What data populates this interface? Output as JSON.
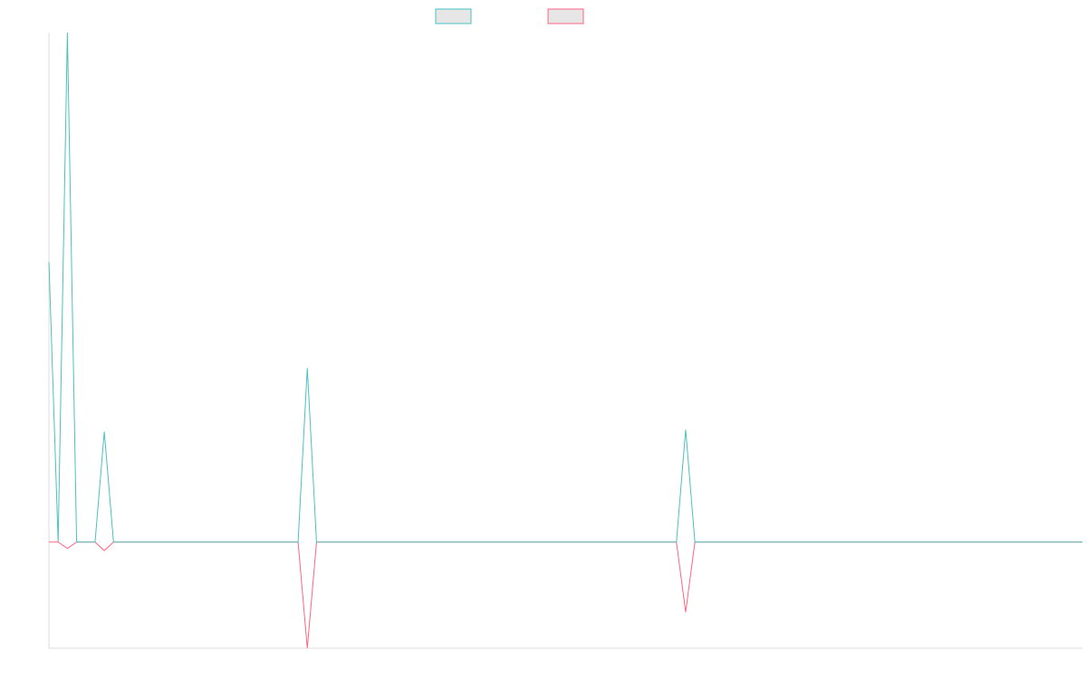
{
  "chart_data": {
    "type": "line",
    "title": "",
    "xlabel": "",
    "ylabel": "",
    "x_count": 113,
    "ylim": [
      -5,
      24
    ],
    "grid": false,
    "legend": "top-center",
    "series": [
      {
        "name": "",
        "color": "#4bc0c0",
        "fill": "#e6e6e6",
        "points": [
          [
            0,
            13.2
          ],
          [
            1,
            0
          ],
          [
            2,
            24
          ],
          [
            3,
            0
          ],
          [
            4,
            0
          ],
          [
            5,
            0
          ],
          [
            6,
            5.2
          ],
          [
            7,
            0
          ],
          [
            27,
            0
          ],
          [
            28,
            8.2
          ],
          [
            29,
            0
          ],
          [
            68,
            0
          ],
          [
            69,
            5.3
          ],
          [
            70,
            0
          ],
          [
            112,
            0
          ]
        ]
      },
      {
        "name": "",
        "color": "#ff6384",
        "fill": "#e6e6e6",
        "points": [
          [
            0,
            0
          ],
          [
            1,
            0
          ],
          [
            2,
            -0.3
          ],
          [
            3,
            0
          ],
          [
            5,
            0
          ],
          [
            6,
            -0.4
          ],
          [
            7,
            0
          ],
          [
            27,
            0
          ],
          [
            28,
            -5
          ],
          [
            29,
            0
          ],
          [
            68,
            0
          ],
          [
            69,
            -3.3
          ],
          [
            70,
            0
          ],
          [
            112,
            0
          ]
        ]
      }
    ]
  }
}
